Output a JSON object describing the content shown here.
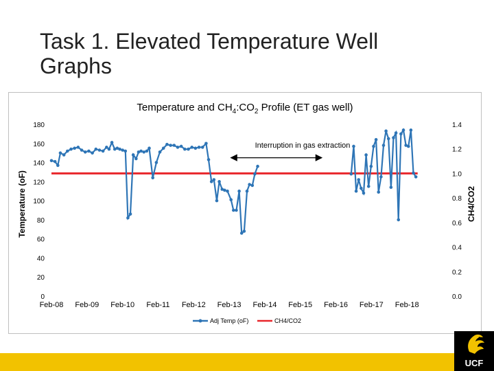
{
  "slide": {
    "title_line1": "Task 1. Elevated Temperature Well",
    "title_line2": "Graphs",
    "logo_text": "UCF"
  },
  "colors": {
    "temp": "#2E75B6",
    "ratio": "#E8262B",
    "accent": "#F2C200"
  },
  "chart_data": {
    "type": "line",
    "title": "Temperature and CH",
    "title_sub1": "4",
    "title_mid": ":CO",
    "title_sub2": "2",
    "title_end": " Profile (ET gas well)",
    "ylabel": "Temperature (oF)",
    "y2label": "CH4/CO2",
    "ylim": [
      0,
      180
    ],
    "y2lim": [
      0.0,
      1.4
    ],
    "yticks": [
      "0",
      "20",
      "40",
      "60",
      "80",
      "100",
      "120",
      "140",
      "160",
      "180"
    ],
    "y2ticks": [
      "0.0",
      "0.2",
      "0.4",
      "0.6",
      "0.8",
      "1.0",
      "1.2",
      "1.4"
    ],
    "xlim": [
      2008.0,
      2019.0
    ],
    "xticks": [
      {
        "label": "Feb-08",
        "value": 2008.0
      },
      {
        "label": "Feb-09",
        "value": 2009.0
      },
      {
        "label": "Feb-10",
        "value": 2010.0
      },
      {
        "label": "Feb-11",
        "value": 2011.0
      },
      {
        "label": "Feb-12",
        "value": 2012.0
      },
      {
        "label": "Feb-13",
        "value": 2013.0
      },
      {
        "label": "Feb-14",
        "value": 2014.0
      },
      {
        "label": "Feb-15",
        "value": 2015.0
      },
      {
        "label": "Feb-16",
        "value": 2016.0
      },
      {
        "label": "Feb-17",
        "value": 2017.0
      },
      {
        "label": "Feb-18",
        "value": 2018.0
      }
    ],
    "grid": false,
    "legend_position": "bottom",
    "annotation": {
      "text": "Interruption in gas extraction",
      "x_start": 2013.05,
      "x_end": 2015.6,
      "y": 145
    },
    "series": [
      {
        "name": "Adj Temp (oF)",
        "axis": "left",
        "segments": [
          [
            [
              2008.0,
              142
            ],
            [
              2008.1,
              141
            ],
            [
              2008.18,
              137
            ],
            [
              2008.25,
              150
            ],
            [
              2008.35,
              148
            ],
            [
              2008.45,
              152
            ],
            [
              2008.55,
              154
            ],
            [
              2008.65,
              155
            ],
            [
              2008.75,
              156
            ],
            [
              2008.85,
              153
            ],
            [
              2008.95,
              151
            ],
            [
              2009.05,
              152
            ],
            [
              2009.15,
              150
            ],
            [
              2009.25,
              154
            ],
            [
              2009.35,
              153
            ],
            [
              2009.45,
              152
            ],
            [
              2009.55,
              156
            ],
            [
              2009.62,
              154
            ],
            [
              2009.7,
              161
            ],
            [
              2009.78,
              154
            ],
            [
              2009.85,
              155
            ],
            [
              2009.92,
              154
            ],
            [
              2010.0,
              153
            ],
            [
              2010.08,
              152
            ],
            [
              2010.15,
              82
            ],
            [
              2010.22,
              86
            ],
            [
              2010.3,
              148
            ],
            [
              2010.38,
              144
            ],
            [
              2010.45,
              151
            ],
            [
              2010.52,
              152
            ],
            [
              2010.6,
              151
            ],
            [
              2010.68,
              152
            ],
            [
              2010.75,
              155
            ],
            [
              2010.85,
              124
            ],
            [
              2010.95,
              140
            ],
            [
              2011.05,
              151
            ],
            [
              2011.15,
              155
            ],
            [
              2011.25,
              159
            ],
            [
              2011.35,
              158
            ],
            [
              2011.45,
              158
            ],
            [
              2011.55,
              156
            ],
            [
              2011.65,
              157
            ],
            [
              2011.75,
              154
            ],
            [
              2011.85,
              154
            ],
            [
              2011.95,
              156
            ],
            [
              2012.05,
              155
            ],
            [
              2012.15,
              156
            ],
            [
              2012.25,
              156
            ],
            [
              2012.35,
              160
            ],
            [
              2012.42,
              143
            ],
            [
              2012.5,
              120
            ],
            [
              2012.57,
              122
            ],
            [
              2012.65,
              100
            ],
            [
              2012.72,
              120
            ],
            [
              2012.8,
              112
            ],
            [
              2012.87,
              111
            ],
            [
              2012.95,
              110
            ],
            [
              2013.05,
              101
            ],
            [
              2013.12,
              90
            ],
            [
              2013.2,
              90
            ],
            [
              2013.28,
              110
            ],
            [
              2013.35,
              66
            ],
            [
              2013.42,
              68
            ],
            [
              2013.5,
              110
            ],
            [
              2013.57,
              117
            ],
            [
              2013.65,
              116
            ],
            [
              2013.72,
              128
            ],
            [
              2013.8,
              136
            ]
          ],
          [
            [
              2016.43,
              128
            ],
            [
              2016.5,
              157
            ],
            [
              2016.57,
              110
            ],
            [
              2016.64,
              122
            ],
            [
              2016.71,
              113
            ],
            [
              2016.78,
              108
            ],
            [
              2016.85,
              148
            ],
            [
              2016.92,
              115
            ],
            [
              2016.99,
              136
            ],
            [
              2017.06,
              157
            ],
            [
              2017.13,
              164
            ],
            [
              2017.2,
              109
            ],
            [
              2017.27,
              125
            ],
            [
              2017.34,
              158
            ],
            [
              2017.41,
              173
            ],
            [
              2017.48,
              165
            ],
            [
              2017.55,
              114
            ],
            [
              2017.62,
              166
            ],
            [
              2017.69,
              171
            ],
            [
              2017.76,
              80
            ],
            [
              2017.83,
              170
            ],
            [
              2017.9,
              174
            ],
            [
              2017.97,
              158
            ],
            [
              2018.04,
              157
            ],
            [
              2018.11,
              174
            ],
            [
              2018.18,
              129
            ],
            [
              2018.25,
              125
            ]
          ]
        ]
      },
      {
        "name": "CH4/CO2",
        "axis": "right",
        "points": [
          [
            2008.0,
            1.0
          ],
          [
            2018.3,
            1.0
          ]
        ]
      }
    ]
  }
}
